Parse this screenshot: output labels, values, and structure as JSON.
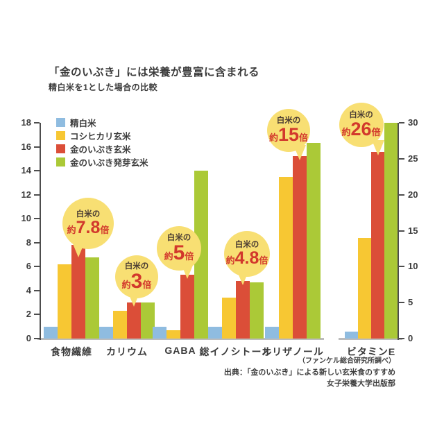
{
  "chart": {
    "title": "「金のいぶき」には栄養が豊富に含まれる",
    "subtitle": "精白米を1とした場合の比較"
  },
  "chart_data": {
    "type": "bar",
    "title": "「金のいぶき」には栄養が豊富に含まれる",
    "subtitle": "精白米を1とした場合の比較",
    "categories": [
      "食物繊維",
      "カリウム",
      "GABA",
      "総イノシトール",
      "オリザノール",
      "ビタミンE"
    ],
    "series": [
      {
        "name": "精白米",
        "color": "#8fbce0",
        "values": [
          1,
          1,
          1,
          1,
          1,
          1
        ]
      },
      {
        "name": "コシヒカリ玄米",
        "color": "#f7c733",
        "values": [
          6.2,
          2.3,
          0.7,
          3.4,
          13.5,
          14
        ]
      },
      {
        "name": "金のいぶき玄米",
        "color": "#db4e38",
        "values": [
          7.8,
          3,
          5.3,
          4.8,
          15.2,
          26
        ]
      },
      {
        "name": "金のいぶき発芽玄米",
        "color": "#abc937",
        "values": [
          6.8,
          3,
          14,
          4.7,
          16.3,
          30
        ]
      }
    ],
    "left_axis": {
      "min": 0,
      "max": 18,
      "step": 2,
      "applies_to_categories": [
        "食物繊維",
        "カリウム",
        "GABA",
        "総イノシトール",
        "オリザノール"
      ]
    },
    "right_axis": {
      "min": 0,
      "max": 30,
      "step": 5,
      "applies_to_categories": [
        "ビタミンE"
      ]
    },
    "grid": false,
    "legend_position": "top-left",
    "callouts": [
      {
        "category": "食物繊維",
        "line1": "白米の",
        "approx": "約",
        "number": "7.8",
        "unit": "倍"
      },
      {
        "category": "カリウム",
        "line1": "白米の",
        "approx": "約",
        "number": "3",
        "unit": "倍"
      },
      {
        "category": "GABA",
        "line1": "白米の",
        "approx": "約",
        "number": "5",
        "unit": "倍"
      },
      {
        "category": "総イノシトール",
        "line1": "白米の",
        "approx": "約",
        "number": "4.8",
        "unit": "倍"
      },
      {
        "category": "オリザノール",
        "line1": "白米の",
        "approx": "約",
        "number": "15",
        "unit": "倍"
      },
      {
        "category": "ビタミンE",
        "line1": "白米の",
        "approx": "約",
        "number": "26",
        "unit": "倍"
      }
    ]
  },
  "source": {
    "line1": "（ファンケル総合研究所調べ）",
    "line2": "出典：「金のいぶき」による新しい玄米食のすすめ",
    "line3": "女子栄養大学出版部"
  },
  "colors": {
    "series_blue": "#8fbce0",
    "series_yellow": "#f7c733",
    "series_red": "#db4e38",
    "series_green": "#abc937",
    "bubble_fill": "#f8df73",
    "bubble_number": "#d2382c",
    "axis": "#4d4d4d",
    "baseline": "#bcbcbc",
    "text": "#3b3b3b"
  }
}
